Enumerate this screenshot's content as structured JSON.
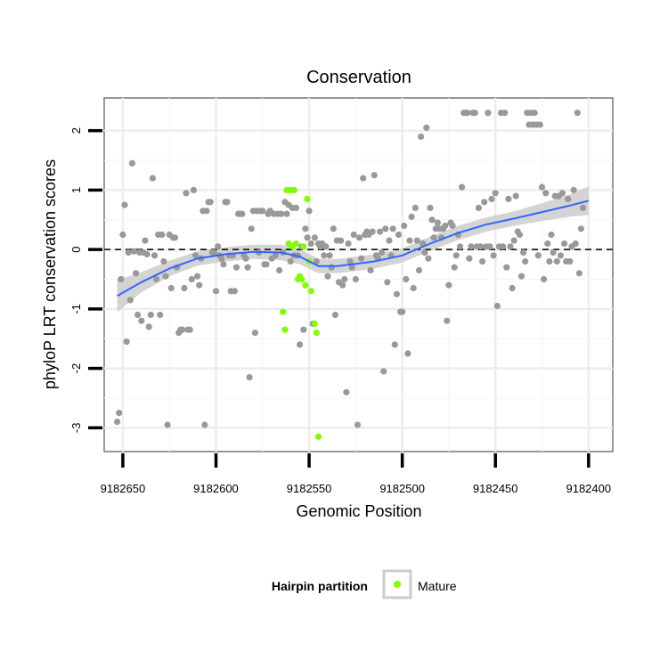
{
  "chart_data": {
    "type": "scatter",
    "title": "Conservation",
    "xlabel": "Genomic Position",
    "ylabel": "phyloP LRT conservation scores",
    "x_reversed": true,
    "xlim": [
      9182660,
      9182387
    ],
    "ylim": [
      -3.4,
      2.55
    ],
    "x_ticks": [
      9182650,
      9182600,
      9182550,
      9182500,
      9182450,
      9182400
    ],
    "x_tick_labels": [
      "9182650",
      "9182600",
      "9182550",
      "9182500",
      "9182450",
      "9182400"
    ],
    "y_ticks": [
      -3,
      -2,
      -1,
      0,
      1,
      2
    ],
    "y_tick_labels": [
      "-3",
      "-2",
      "-1",
      "0",
      "1",
      "2"
    ],
    "grid": true,
    "reference_line": {
      "y": 0,
      "style": "dashed"
    },
    "legend": {
      "title": "Hairpin partition",
      "position": "bottom",
      "entries": [
        {
          "label": "Mature",
          "color": "#7fff00"
        }
      ]
    },
    "colors": {
      "other": "#999999",
      "mature": "#7fff00",
      "smooth": "#3366ff",
      "ribbon": "#cccccc"
    },
    "series": [
      {
        "name": "",
        "color": "#999999",
        "points": [
          [
            9182653,
            -2.9
          ],
          [
            9182652,
            -2.75
          ],
          [
            9182651,
            -0.5
          ],
          [
            9182650,
            0.25
          ],
          [
            9182649,
            0.75
          ],
          [
            9182648,
            -1.55
          ],
          [
            9182647,
            -0.05
          ],
          [
            9182646,
            -0.85
          ],
          [
            9182645,
            1.45
          ],
          [
            9182644,
            -0.03
          ],
          [
            9182643,
            -0.4
          ],
          [
            9182642,
            -1.1
          ],
          [
            9182641,
            -0.05
          ],
          [
            9182640,
            -1.2
          ],
          [
            9182639,
            -0.05
          ],
          [
            9182638,
            0.15
          ],
          [
            9182637,
            -0.08
          ],
          [
            9182636,
            -1.3
          ],
          [
            9182635,
            -1.1
          ],
          [
            9182634,
            1.2
          ],
          [
            9182633,
            -0.1
          ],
          [
            9182632,
            -0.5
          ],
          [
            9182631,
            0.25
          ],
          [
            9182630,
            -1.1
          ],
          [
            9182629,
            0.25
          ],
          [
            9182628,
            -0.2
          ],
          [
            9182627,
            -0.45
          ],
          [
            9182626,
            -2.95
          ],
          [
            9182625,
            0.25
          ],
          [
            9182624,
            -0.65
          ],
          [
            9182623,
            0.2
          ],
          [
            9182622,
            0.2
          ],
          [
            9182621,
            -0.3
          ],
          [
            9182620,
            -1.4
          ],
          [
            9182619,
            -1.35
          ],
          [
            9182618,
            -1.35
          ],
          [
            9182617,
            -0.65
          ],
          [
            9182616,
            0.95
          ],
          [
            9182615,
            -1.35
          ],
          [
            9182614,
            -1.35
          ],
          [
            9182613,
            -0.5
          ],
          [
            9182612,
            1.0
          ],
          [
            9182611,
            -0.1
          ],
          [
            9182610,
            -0.45
          ],
          [
            9182609,
            -0.6
          ],
          [
            9182608,
            -0.15
          ],
          [
            9182607,
            0.65
          ],
          [
            9182606,
            -2.95
          ],
          [
            9182605,
            0.65
          ],
          [
            9182604,
            0.8
          ],
          [
            9182603,
            0.8
          ],
          [
            9182602,
            -0.05
          ],
          [
            9182601,
            -0.05
          ],
          [
            9182600,
            -0.7
          ],
          [
            9182599,
            0.05
          ],
          [
            9182598,
            -0.1
          ],
          [
            9182597,
            -0.15
          ],
          [
            9182596,
            -0.25
          ],
          [
            9182595,
            0.8
          ],
          [
            9182594,
            0.8
          ],
          [
            9182593,
            -0.1
          ],
          [
            9182592,
            -0.7
          ],
          [
            9182591,
            -0.1
          ],
          [
            9182590,
            -0.7
          ],
          [
            9182589,
            -0.3
          ],
          [
            9182588,
            0.6
          ],
          [
            9182587,
            0.6
          ],
          [
            9182586,
            0.6
          ],
          [
            9182585,
            -0.1
          ],
          [
            9182584,
            -0.15
          ],
          [
            9182583,
            -0.3
          ],
          [
            9182582,
            -2.15
          ],
          [
            9182581,
            0.35
          ],
          [
            9182580,
            0.65
          ],
          [
            9182579,
            -1.4
          ],
          [
            9182578,
            0.65
          ],
          [
            9182577,
            -0.05
          ],
          [
            9182576,
            0.65
          ],
          [
            9182575,
            0.65
          ],
          [
            9182574,
            -0.25
          ],
          [
            9182573,
            -0.25
          ],
          [
            9182572,
            0.6
          ],
          [
            9182571,
            0.65
          ],
          [
            9182570,
            -0.15
          ],
          [
            9182569,
            0.6
          ],
          [
            9182568,
            -0.1
          ],
          [
            9182567,
            0.6
          ],
          [
            9182566,
            -0.35
          ],
          [
            9182565,
            0.6
          ],
          [
            9182564,
            -0.05
          ],
          [
            9182563,
            0.8
          ],
          [
            9182562,
            0.6
          ],
          [
            9182561,
            0.75
          ],
          [
            9182560,
            -0.2
          ],
          [
            9182559,
            0.7
          ],
          [
            9182558,
            -0.1
          ],
          [
            9182557,
            0.7
          ],
          [
            9182556,
            -0.1
          ],
          [
            9182555,
            -1.6
          ],
          [
            9182554,
            0.05
          ],
          [
            9182553,
            -1.35
          ],
          [
            9182552,
            0.35
          ],
          [
            9182551,
            0.2
          ],
          [
            9182550,
            0.65
          ],
          [
            9182549,
            0.1
          ],
          [
            9182548,
            -1.25
          ],
          [
            9182547,
            0.2
          ],
          [
            9182546,
            -0.2
          ],
          [
            9182545,
            0.1
          ],
          [
            9182544,
            0.05
          ],
          [
            9182543,
            0.1
          ],
          [
            9182542,
            -0.1
          ],
          [
            9182541,
            0.05
          ],
          [
            9182540,
            -0.45
          ],
          [
            9182539,
            -0.1
          ],
          [
            9182538,
            -0.3
          ],
          [
            9182537,
            0.35
          ],
          [
            9182536,
            -1.1
          ],
          [
            9182535,
            0.15
          ],
          [
            9182534,
            -0.55
          ],
          [
            9182533,
            0.15
          ],
          [
            9182532,
            -0.6
          ],
          [
            9182531,
            -0.5
          ],
          [
            9182530,
            -2.4
          ],
          [
            9182529,
            0.1
          ],
          [
            9182528,
            -0.2
          ],
          [
            9182527,
            -0.3
          ],
          [
            9182526,
            0.25
          ],
          [
            9182525,
            -0.5
          ],
          [
            9182524,
            -2.95
          ],
          [
            9182523,
            0.2
          ],
          [
            9182522,
            -0.15
          ],
          [
            9182521,
            1.2
          ],
          [
            9182520,
            0.25
          ],
          [
            9182519,
            0.3
          ],
          [
            9182518,
            0.25
          ],
          [
            9182517,
            -0.35
          ],
          [
            9182516,
            0.3
          ],
          [
            9182515,
            1.25
          ],
          [
            9182514,
            -0.1
          ],
          [
            9182513,
            -0.15
          ],
          [
            9182512,
            0.3
          ],
          [
            9182511,
            -0.05
          ],
          [
            9182510,
            -2.05
          ],
          [
            9182509,
            0.35
          ],
          [
            9182508,
            -0.55
          ],
          [
            9182507,
            0.15
          ],
          [
            9182506,
            -0.1
          ],
          [
            9182505,
            0.35
          ],
          [
            9182504,
            -1.6
          ],
          [
            9182503,
            -0.75
          ],
          [
            9182502,
            0.25
          ],
          [
            9182501,
            -1.05
          ],
          [
            9182500,
            -1.05
          ],
          [
            9182499,
            0.4
          ],
          [
            9182498,
            -0.5
          ],
          [
            9182497,
            -1.75
          ],
          [
            9182496,
            0.15
          ],
          [
            9182495,
            0.55
          ],
          [
            9182494,
            -0.65
          ],
          [
            9182493,
            0.7
          ],
          [
            9182492,
            0.15
          ],
          [
            9182491,
            -0.35
          ],
          [
            9182490,
            1.9
          ],
          [
            9182489,
            0.1
          ],
          [
            9182488,
            -0.05
          ],
          [
            9182487,
            2.05
          ],
          [
            9182486,
            -0.15
          ],
          [
            9182485,
            0.7
          ],
          [
            9182484,
            0.5
          ],
          [
            9182483,
            0.2
          ],
          [
            9182482,
            0.35
          ],
          [
            9182481,
            0.45
          ],
          [
            9182480,
            0.35
          ],
          [
            9182479,
            0.2
          ],
          [
            9182478,
            0.35
          ],
          [
            9182477,
            0.4
          ],
          [
            9182476,
            -1.2
          ],
          [
            9182475,
            -0.6
          ],
          [
            9182474,
            0.45
          ],
          [
            9182473,
            0.4
          ],
          [
            9182472,
            -0.3
          ],
          [
            9182471,
            -0.1
          ],
          [
            9182470,
            0.25
          ],
          [
            9182469,
            0.05
          ],
          [
            9182468,
            1.05
          ],
          [
            9182467,
            2.3
          ],
          [
            9182466,
            2.3
          ],
          [
            9182465,
            2.3
          ],
          [
            9182464,
            -0.15
          ],
          [
            9182463,
            0.05
          ],
          [
            9182462,
            2.3
          ],
          [
            9182461,
            2.3
          ],
          [
            9182460,
            0.05
          ],
          [
            9182459,
            0.7
          ],
          [
            9182458,
            0.05
          ],
          [
            9182457,
            -0.2
          ],
          [
            9182456,
            0.8
          ],
          [
            9182455,
            0.05
          ],
          [
            9182454,
            2.3
          ],
          [
            9182453,
            0.05
          ],
          [
            9182452,
            0.85
          ],
          [
            9182451,
            -0.1
          ],
          [
            9182450,
            0.95
          ],
          [
            9182449,
            -0.95
          ],
          [
            9182448,
            0.05
          ],
          [
            9182447,
            2.3
          ],
          [
            9182446,
            0.05
          ],
          [
            9182445,
            2.3
          ],
          [
            9182444,
            -0.3
          ],
          [
            9182443,
            0.85
          ],
          [
            9182442,
            0.05
          ],
          [
            9182441,
            -0.65
          ],
          [
            9182440,
            0.15
          ],
          [
            9182439,
            0.9
          ],
          [
            9182438,
            0.3
          ],
          [
            9182437,
            0.25
          ],
          [
            9182436,
            -0.45
          ],
          [
            9182435,
            -0.05
          ],
          [
            9182434,
            -0.2
          ],
          [
            9182433,
            2.3
          ],
          [
            9182432,
            2.1
          ],
          [
            9182431,
            2.3
          ],
          [
            9182430,
            2.1
          ],
          [
            9182429,
            2.3
          ],
          [
            9182428,
            2.1
          ],
          [
            9182427,
            -0.1
          ],
          [
            9182426,
            2.1
          ],
          [
            9182425,
            1.05
          ],
          [
            9182424,
            -0.5
          ],
          [
            9182423,
            0.95
          ],
          [
            9182422,
            0.1
          ],
          [
            9182421,
            -0.2
          ],
          [
            9182420,
            0.25
          ],
          [
            9182419,
            -0.05
          ],
          [
            9182418,
            0.9
          ],
          [
            9182417,
            -0.2
          ],
          [
            9182416,
            0.9
          ],
          [
            9182415,
            -0.1
          ],
          [
            9182414,
            0.95
          ],
          [
            9182413,
            0.1
          ],
          [
            9182412,
            -0.2
          ],
          [
            9182411,
            0.85
          ],
          [
            9182410,
            -0.2
          ],
          [
            9182409,
            0.05
          ],
          [
            9182408,
            1.0
          ],
          [
            9182407,
            0.1
          ],
          [
            9182406,
            2.3
          ],
          [
            9182405,
            -0.4
          ],
          [
            9182404,
            0.35
          ],
          [
            9182403,
            0.7
          ]
        ]
      },
      {
        "name": "Mature",
        "color": "#7fff00",
        "points": [
          [
            9182562,
            1.0
          ],
          [
            9182561,
            0.1
          ],
          [
            9182560,
            1.0
          ],
          [
            9182559,
            0.05
          ],
          [
            9182558,
            1.0
          ],
          [
            9182557,
            0.1
          ],
          [
            9182556,
            -0.5
          ],
          [
            9182555,
            -0.45
          ],
          [
            9182554,
            -0.5
          ],
          [
            9182553,
            0.05
          ],
          [
            9182552,
            -0.6
          ],
          [
            9182551,
            0.85
          ],
          [
            9182550,
            -0.2
          ],
          [
            9182549,
            -0.7
          ],
          [
            9182564,
            -1.05
          ],
          [
            9182563,
            -1.35
          ],
          [
            9182547,
            -1.25
          ],
          [
            9182546,
            -1.4
          ],
          [
            9182545,
            -3.15
          ]
        ]
      }
    ],
    "smooth_line": {
      "x": [
        9182653,
        9182640,
        9182625,
        9182610,
        9182595,
        9182580,
        9182565,
        9182555,
        9182545,
        9182535,
        9182525,
        9182515,
        9182500,
        9182485,
        9182470,
        9182455,
        9182440,
        9182425,
        9182410,
        9182400
      ],
      "y": [
        -0.78,
        -0.55,
        -0.32,
        -0.15,
        -0.08,
        -0.04,
        -0.05,
        -0.12,
        -0.28,
        -0.28,
        -0.24,
        -0.2,
        -0.1,
        0.1,
        0.28,
        0.42,
        0.52,
        0.63,
        0.74,
        0.82
      ],
      "ribbon_low": [
        -1.05,
        -0.72,
        -0.45,
        -0.27,
        -0.2,
        -0.16,
        -0.18,
        -0.25,
        -0.4,
        -0.4,
        -0.36,
        -0.32,
        -0.22,
        -0.02,
        0.16,
        0.3,
        0.4,
        0.48,
        0.55,
        0.58
      ],
      "ribbon_high": [
        -0.51,
        -0.38,
        -0.19,
        -0.03,
        0.04,
        0.08,
        0.08,
        0.01,
        -0.16,
        -0.16,
        -0.12,
        -0.08,
        0.02,
        0.22,
        0.4,
        0.54,
        0.64,
        0.78,
        0.93,
        1.06
      ]
    }
  }
}
